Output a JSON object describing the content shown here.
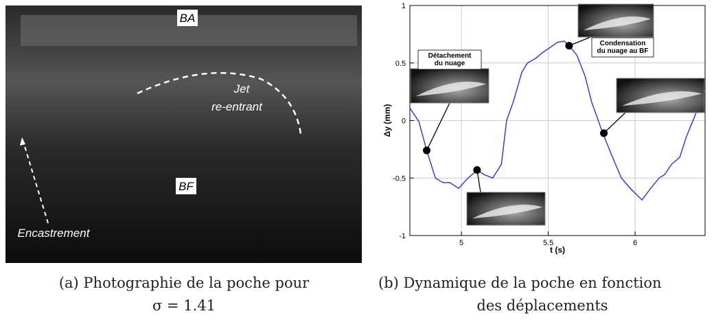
{
  "photo": {
    "labels": {
      "ba": "BA",
      "jet": "Jet",
      "reentrant": "re-entrant",
      "bf": "BF",
      "encastrement": "Encastrement"
    }
  },
  "captions": {
    "a": [
      "(a) Photographie de la poche pour",
      "σ = 1.41"
    ],
    "b": [
      "(b) Dynamique de la poche en fonction",
      "des déplacements"
    ]
  },
  "chart_data": {
    "type": "line",
    "xlabel": "t (s)",
    "ylabel": "Δy (mm)",
    "color": "#3a3ad6",
    "x": [
      4.703,
      4.755,
      4.8,
      4.85,
      4.893,
      4.933,
      4.984,
      5.032,
      5.091,
      5.13,
      5.18,
      5.23,
      5.26,
      5.3,
      5.348,
      5.38,
      5.427,
      5.466,
      5.506,
      5.553,
      5.593,
      5.625,
      5.664,
      5.711,
      5.75,
      5.814,
      5.862,
      5.921,
      5.972,
      6.04,
      6.09,
      6.138,
      6.17,
      6.21,
      6.257,
      6.296,
      6.344,
      6.403
    ],
    "values": [
      0.11,
      -0.01,
      -0.26,
      -0.5,
      -0.54,
      -0.54,
      -0.59,
      -0.51,
      -0.43,
      -0.47,
      -0.5,
      -0.38,
      0.0,
      0.17,
      0.42,
      0.5,
      0.54,
      0.59,
      0.63,
      0.68,
      0.69,
      0.64,
      0.57,
      0.39,
      0.16,
      -0.11,
      -0.29,
      -0.5,
      -0.59,
      -0.69,
      -0.59,
      -0.5,
      -0.47,
      -0.38,
      -0.32,
      -0.14,
      0.04,
      0.26
    ],
    "markers": {
      "x": [
        4.8,
        5.09,
        5.62,
        5.82
      ],
      "y": [
        -0.26,
        -0.43,
        0.65,
        -0.11
      ]
    },
    "annotations": [
      [
        "Détachement",
        "du nuage"
      ],
      [
        "Condensation",
        "du nuage au BF"
      ]
    ],
    "xlim": [
      4.703,
      6.403
    ],
    "ylim": [
      -1,
      1
    ],
    "xticks": [
      5,
      5.5,
      6
    ],
    "yticks": [
      -1,
      -0.5,
      0,
      0.5,
      1
    ],
    "grid": true
  }
}
